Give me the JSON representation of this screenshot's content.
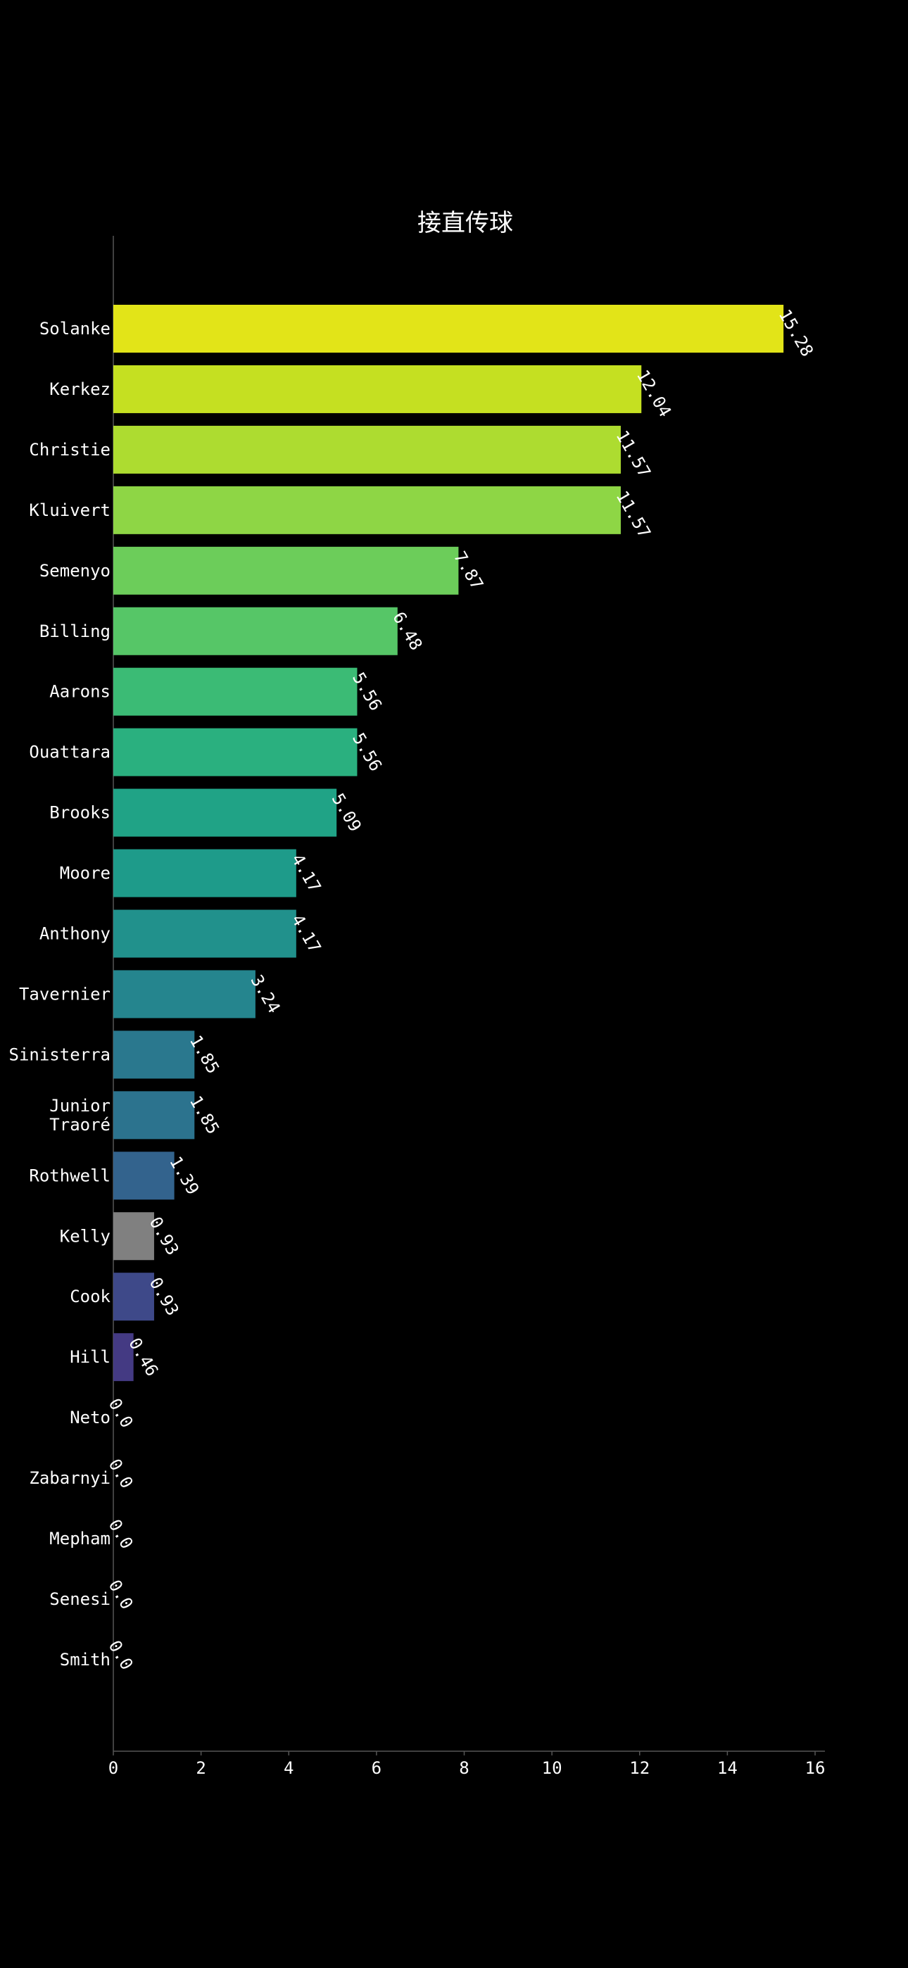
{
  "chart_data": {
    "type": "bar",
    "orientation": "horizontal",
    "title": "接直传球",
    "xlabel": "",
    "ylabel": "",
    "xlim": [
      0,
      16
    ],
    "x_ticks": [
      0,
      2,
      4,
      6,
      8,
      10,
      12,
      14,
      16
    ],
    "grid": false,
    "legend": "none",
    "background": "#000000",
    "categories": [
      "Solanke",
      "Kerkez",
      "Christie",
      "Kluivert",
      "Semenyo",
      "Billing",
      "Aarons",
      "Ouattara",
      "Brooks",
      "Moore",
      "Anthony",
      "Tavernier",
      "Sinisterra",
      "Junior\nTraoré",
      "Rothwell",
      "Kelly",
      "Cook",
      "Hill",
      "Neto",
      "Zabarnyi",
      "Mepham",
      "Senesi",
      "Smith"
    ],
    "values": [
      15.28,
      12.04,
      11.57,
      11.57,
      7.87,
      6.48,
      5.56,
      5.56,
      5.09,
      4.17,
      4.17,
      3.24,
      1.85,
      1.85,
      1.39,
      0.93,
      0.93,
      0.46,
      0.0,
      0.0,
      0.0,
      0.0,
      0.0
    ],
    "value_labels": [
      "15.28",
      "12.04",
      "11.57",
      "11.57",
      "7.87",
      "6.48",
      "5.56",
      "5.56",
      "5.09",
      "4.17",
      "4.17",
      "3.24",
      "1.85",
      "1.85",
      "1.39",
      "0.93",
      "0.93",
      "0.46",
      "0.0",
      "0.0",
      "0.0",
      "0.0",
      "0.0"
    ],
    "colors": [
      "#e2e418",
      "#c5e021",
      "#addc30",
      "#8ed645",
      "#6ccd5a",
      "#56c667",
      "#3bbb75",
      "#2ab07f",
      "#20a386",
      "#1e9b8a",
      "#21918c",
      "#25858e",
      "#2a788e",
      "#2c738e",
      "#33638d",
      "#808080",
      "#3e4989",
      "#443a83",
      "#46307e",
      "#482475",
      "#48186a",
      "#471063",
      "#440154"
    ]
  }
}
